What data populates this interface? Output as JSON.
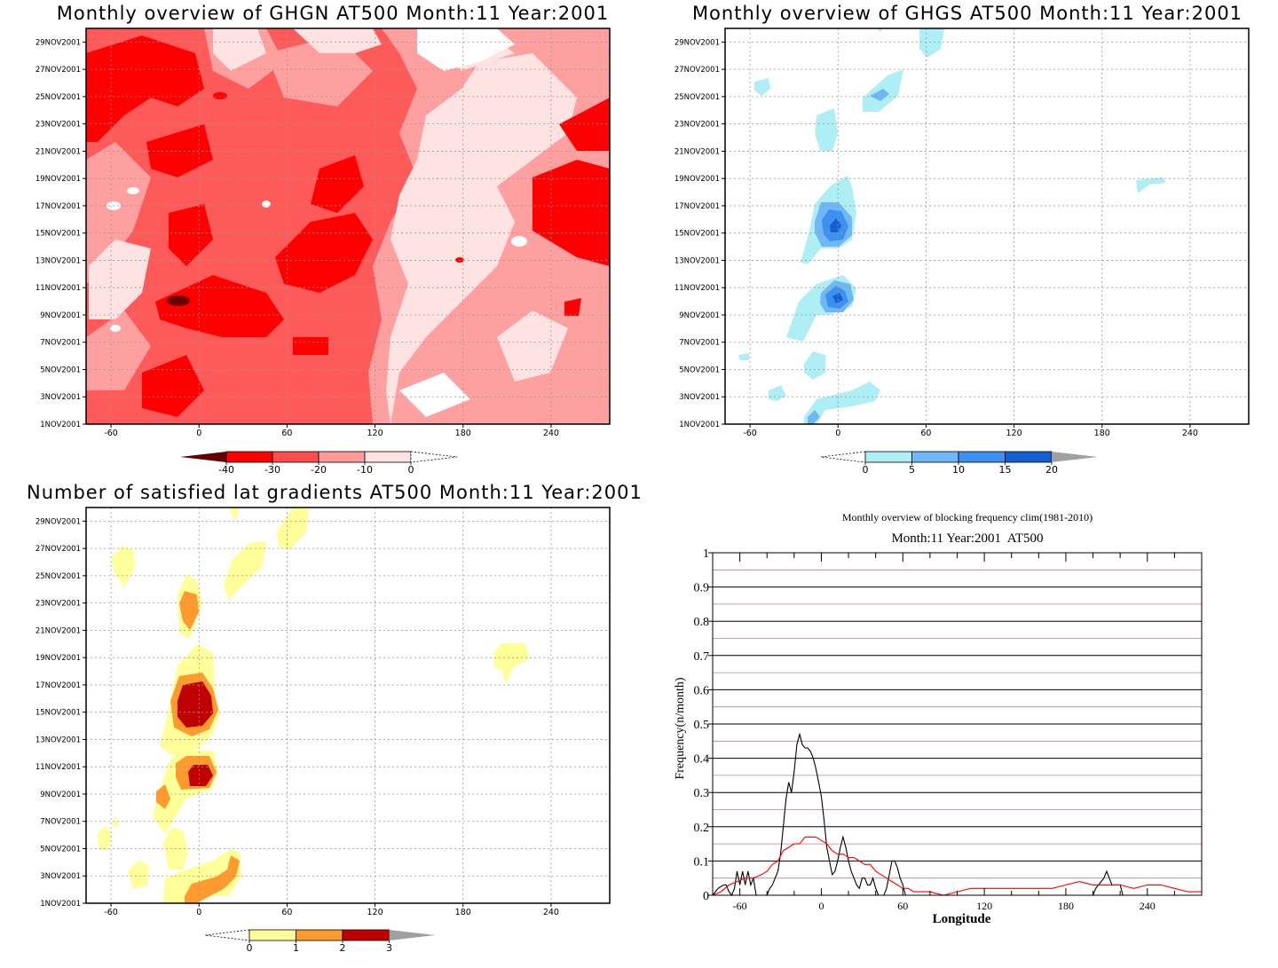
{
  "chart_data": [
    {
      "type": "heatmap",
      "title": "Monthly overview of GHGN AT500 Month:11 Year:2001",
      "x_ticks": [
        "-60",
        "0",
        "60",
        "120",
        "180",
        "240"
      ],
      "x_tick_values": [
        -60,
        0,
        60,
        120,
        180,
        240
      ],
      "xlim": [
        -77,
        280
      ],
      "y_ticks": [
        "1NOV2001",
        "3NOV2001",
        "5NOV2001",
        "7NOV2001",
        "9NOV2001",
        "11NOV2001",
        "13NOV2001",
        "15NOV2001",
        "17NOV2001",
        "19NOV2001",
        "21NOV2001",
        "23NOV2001",
        "25NOV2001",
        "27NOV2001",
        "29NOV2001"
      ],
      "ylim": [
        1,
        30
      ],
      "grid": true,
      "colorbar": {
        "levels": [
          "-40",
          "-30",
          "-20",
          "-10",
          "0"
        ],
        "colors": [
          "#600000",
          "#ff0000",
          "#ff4d4d",
          "#ff9a9a",
          "#ffe2e2",
          "#ffffff"
        ]
      },
      "colors": {
        "deep": "#6b0000",
        "dark": "#ff0000",
        "mid": "#ff5a5a",
        "light": "#ffa0a0",
        "pale": "#ffe2e2"
      }
    },
    {
      "type": "heatmap",
      "title": "Monthly overview of GHGS AT500 Month:11 Year:2001",
      "x_ticks": [
        "-60",
        "0",
        "60",
        "120",
        "180",
        "240"
      ],
      "x_tick_values": [
        -60,
        0,
        60,
        120,
        180,
        240
      ],
      "xlim": [
        -77,
        280
      ],
      "y_ticks": [
        "1NOV2001",
        "3NOV2001",
        "5NOV2001",
        "7NOV2001",
        "9NOV2001",
        "11NOV2001",
        "13NOV2001",
        "15NOV2001",
        "17NOV2001",
        "19NOV2001",
        "21NOV2001",
        "23NOV2001",
        "25NOV2001",
        "27NOV2001",
        "29NOV2001"
      ],
      "ylim": [
        1,
        30
      ],
      "grid": true,
      "colorbar": {
        "levels": [
          "0",
          "5",
          "10",
          "15",
          "20"
        ],
        "colors": [
          "#ffffff",
          "#aeeef5",
          "#6fb8f5",
          "#3c90f0",
          "#1560d0",
          "#a0a0a0"
        ]
      }
    },
    {
      "type": "heatmap",
      "title": "Number of satisfied lat gradients AT500 Month:11 Year:2001",
      "x_ticks": [
        "-60",
        "0",
        "60",
        "120",
        "180",
        "240"
      ],
      "x_tick_values": [
        -60,
        0,
        60,
        120,
        180,
        240
      ],
      "xlim": [
        -77,
        280
      ],
      "y_ticks": [
        "1NOV2001",
        "3NOV2001",
        "5NOV2001",
        "7NOV2001",
        "9NOV2001",
        "11NOV2001",
        "13NOV2001",
        "15NOV2001",
        "17NOV2001",
        "19NOV2001",
        "21NOV2001",
        "23NOV2001",
        "25NOV2001",
        "27NOV2001",
        "29NOV2001"
      ],
      "ylim": [
        1,
        30
      ],
      "grid": true,
      "colorbar": {
        "levels": [
          "0",
          "1",
          "2",
          "3"
        ],
        "colors": [
          "#ffffff",
          "#ffff99",
          "#ff9a2e",
          "#c00000",
          "#a0a0a0"
        ]
      }
    },
    {
      "type": "line",
      "title": "Monthly overview of blocking frequency clim(1981-2010)",
      "subtitle": "Month:11 Year:2001  AT500",
      "xlabel": "Longitude",
      "ylabel": "Frequency(n/month)",
      "xlim": [
        -80,
        280
      ],
      "ylim": [
        0,
        1
      ],
      "x_ticks": [
        "-60",
        "0",
        "60",
        "120",
        "180",
        "240"
      ],
      "x_tick_values": [
        -60,
        0,
        60,
        120,
        180,
        240
      ],
      "y_ticks": [
        "0",
        "0.1",
        "0.2",
        "0.3",
        "0.4",
        "0.5",
        "0.6",
        "0.7",
        "0.8",
        "0.9",
        "1"
      ],
      "y_tick_values": [
        0,
        0.1,
        0.2,
        0.3,
        0.4,
        0.5,
        0.6,
        0.7,
        0.8,
        0.9,
        1
      ],
      "series": [
        {
          "color": "#000000",
          "x": [
            -80,
            -76,
            -72,
            -70,
            -68,
            -66,
            -64,
            -62,
            -60,
            -58,
            -56,
            -54,
            -52,
            -50,
            -48,
            -46,
            -44,
            -42,
            -40,
            -38,
            -36,
            -34,
            -32,
            -30,
            -28,
            -26,
            -24,
            -22,
            -20,
            -18,
            -16,
            -14,
            -12,
            -10,
            -8,
            -6,
            -4,
            -2,
            0,
            2,
            4,
            6,
            8,
            10,
            12,
            14,
            16,
            18,
            20,
            22,
            24,
            26,
            28,
            30,
            32,
            34,
            36,
            38,
            40,
            42,
            44,
            46,
            48,
            50,
            52,
            54,
            56,
            58,
            60,
            62,
            64,
            66,
            68,
            70,
            200,
            202,
            204,
            206,
            208,
            210,
            212,
            214,
            216,
            218,
            220,
            222,
            224,
            226,
            228,
            230
          ],
          "y": [
            0,
            0.02,
            0.03,
            0.03,
            0.01,
            0.0,
            0.02,
            0.07,
            0.03,
            0.07,
            0.03,
            0.07,
            0.03,
            0.05,
            0.0,
            0.0,
            0.0,
            0.0,
            0.0,
            0.02,
            0.03,
            0.05,
            0.07,
            0.12,
            0.2,
            0.28,
            0.33,
            0.3,
            0.36,
            0.44,
            0.47,
            0.44,
            0.43,
            0.43,
            0.42,
            0.4,
            0.37,
            0.33,
            0.29,
            0.22,
            0.14,
            0.1,
            0.06,
            0.07,
            0.1,
            0.14,
            0.17,
            0.14,
            0.1,
            0.07,
            0.05,
            0.03,
            0.02,
            0.05,
            0.05,
            0.03,
            0.03,
            0.05,
            0.02,
            0.0,
            0.0,
            0.0,
            0.02,
            0.06,
            0.1,
            0.1,
            0.08,
            0.05,
            0.03,
            0.0,
            0.0,
            0.0,
            0.0,
            0.0,
            0.0,
            0.02,
            0.03,
            0.04,
            0.05,
            0.07,
            0.05,
            0.03,
            0.03,
            0.03,
            0.03,
            0.0,
            0.0,
            0.0,
            0.0,
            0.0
          ]
        },
        {
          "color": "#ff0000",
          "x": [
            -80,
            -74,
            -68,
            -62,
            -56,
            -50,
            -44,
            -40,
            -36,
            -32,
            -28,
            -24,
            -20,
            -16,
            -12,
            -8,
            -4,
            0,
            4,
            8,
            12,
            16,
            20,
            24,
            28,
            32,
            36,
            40,
            44,
            48,
            52,
            56,
            60,
            64,
            68,
            72,
            80,
            90,
            100,
            110,
            120,
            130,
            140,
            150,
            160,
            170,
            180,
            190,
            200,
            210,
            220,
            230,
            240,
            250,
            260,
            270,
            280
          ],
          "y": [
            0.0,
            0.01,
            0.03,
            0.04,
            0.05,
            0.05,
            0.06,
            0.07,
            0.09,
            0.1,
            0.13,
            0.14,
            0.15,
            0.15,
            0.17,
            0.17,
            0.17,
            0.16,
            0.15,
            0.13,
            0.12,
            0.12,
            0.11,
            0.11,
            0.1,
            0.09,
            0.09,
            0.07,
            0.06,
            0.05,
            0.04,
            0.03,
            0.02,
            0.02,
            0.01,
            0.01,
            0.01,
            0.0,
            0.01,
            0.02,
            0.02,
            0.02,
            0.02,
            0.02,
            0.02,
            0.02,
            0.03,
            0.04,
            0.03,
            0.03,
            0.03,
            0.02,
            0.03,
            0.03,
            0.02,
            0.01,
            0.01
          ]
        }
      ]
    }
  ]
}
